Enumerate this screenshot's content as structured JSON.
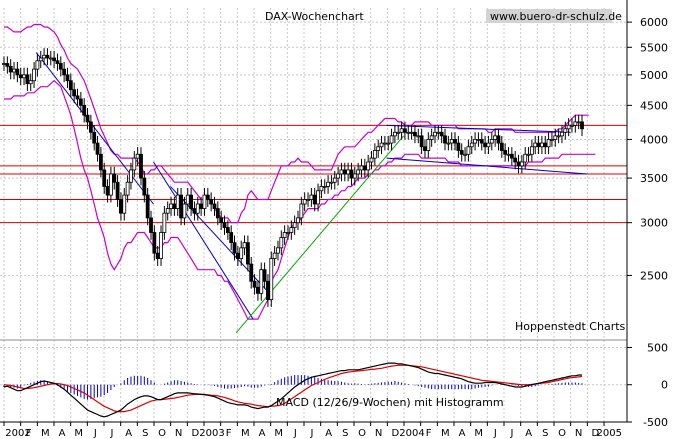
{
  "title": "DAX-Wochenchart",
  "source_badge": "www.buero-dr-schulz.de",
  "credit": "Hoppenstedt Charts",
  "macd_label": "MACD (12/26/9-Wochen) mit Histogramm",
  "colors": {
    "background": "#ffffff",
    "candle": "#000000",
    "bollinger": "#cc00cc",
    "support_lines": "#dd0000",
    "downtrend_lines": "#0000cc",
    "uptrend_line": "#00aa00",
    "macd_line": "#000000",
    "signal_line": "#dd0000",
    "histogram": "#0000cc",
    "badge_bg": "#d3d3d3"
  },
  "chart_data": [
    {
      "type": "candlestick",
      "title": "DAX-Wochenchart",
      "y_scale": "log",
      "ylim": [
        2000,
        6300
      ],
      "yticks": [
        2500,
        3000,
        3500,
        4000,
        4500,
        5000,
        5500,
        6000
      ],
      "grid": true,
      "x_start": "2002-01",
      "x_end": "2005-01",
      "x_tick_labels": [
        "2002",
        "F",
        "M",
        "A",
        "M",
        "J",
        "J",
        "A",
        "S",
        "O",
        "N",
        "D",
        "2003",
        "F",
        "M",
        "A",
        "M",
        "J",
        "J",
        "A",
        "S",
        "O",
        "N",
        "D",
        "2004",
        "F",
        "M",
        "A",
        "M",
        "J",
        "J",
        "A",
        "S",
        "O",
        "N",
        "D",
        "2005"
      ],
      "close": [
        5200,
        5150,
        5050,
        5100,
        5000,
        4950,
        5000,
        4850,
        4900,
        5100,
        5250,
        5300,
        5350,
        5300,
        5300,
        5250,
        5200,
        5100,
        5000,
        4900,
        4750,
        4650,
        4600,
        4500,
        4350,
        4250,
        4100,
        3950,
        3800,
        3600,
        3400,
        3300,
        3550,
        3450,
        3250,
        3100,
        3300,
        3450,
        3600,
        3750,
        3800,
        3500,
        3300,
        3050,
        2900,
        2700,
        2650,
        2900,
        3100,
        3150,
        3200,
        3150,
        3300,
        3050,
        3200,
        3300,
        3150,
        3100,
        3200,
        3150,
        3300,
        3250,
        3200,
        3150,
        3050,
        3000,
        2950,
        2900,
        2800,
        2700,
        2650,
        2750,
        2800,
        2600,
        2450,
        2400,
        2350,
        2550,
        2450,
        2300,
        2650,
        2700,
        2750,
        2850,
        2900,
        2900,
        2950,
        3000,
        3050,
        3200,
        3250,
        3250,
        3300,
        3200,
        3350,
        3400,
        3400,
        3450,
        3450,
        3500,
        3550,
        3600,
        3550,
        3600,
        3500,
        3550,
        3600,
        3650,
        3600,
        3700,
        3750,
        3850,
        3900,
        3950,
        3950,
        3950,
        4050,
        4100,
        4100,
        4150,
        4100,
        4100,
        4100,
        4050,
        4050,
        3900,
        3850,
        4000,
        4050,
        4100,
        4100,
        4050,
        3950,
        3950,
        4000,
        3950,
        3850,
        3800,
        3800,
        3900,
        3950,
        4000,
        4000,
        3950,
        3900,
        3950,
        4000,
        4050,
        3950,
        3850,
        3800,
        3800,
        3750,
        3700,
        3650,
        3700,
        3800,
        3800,
        3900,
        3950,
        3900,
        3950,
        3900,
        4000,
        4000,
        4050,
        4050,
        4100,
        4150,
        4200,
        4200,
        4250,
        4250,
        4150
      ],
      "bollinger_upper": [
        5900,
        5900,
        5850,
        5800,
        5800,
        5800,
        5850,
        5900,
        5900,
        5950,
        5950,
        5950,
        5900,
        5900,
        5850,
        5800,
        5700,
        5550,
        5450,
        5300,
        5200,
        5150,
        5100,
        5000,
        4900,
        4750,
        4600,
        4450,
        4300,
        4150,
        4050,
        3950,
        3850,
        3800,
        3800,
        3750,
        3750,
        3750,
        3750,
        3750,
        3700,
        3650,
        3550,
        3550,
        3600,
        3600,
        3650,
        3650,
        3600,
        3550,
        3500,
        3450,
        3450,
        3450,
        3450,
        3450,
        3400,
        3350,
        3300,
        3250,
        3250,
        3250,
        3250,
        3150,
        3100,
        3050,
        3050,
        3050,
        3000,
        3000,
        3000,
        3100,
        3150,
        3300,
        3350,
        3300,
        3250,
        3250,
        3250,
        3250,
        3350,
        3450,
        3550,
        3650,
        3650,
        3650,
        3700,
        3700,
        3750,
        3700,
        3700,
        3700,
        3650,
        3600,
        3600,
        3600,
        3600,
        3600,
        3600,
        3700,
        3800,
        3850,
        3900,
        3900,
        3900,
        3900,
        3950,
        4000,
        4050,
        4100,
        4100,
        4150,
        4200,
        4250,
        4300,
        4300,
        4300,
        4300,
        4250,
        4250,
        4200,
        4200,
        4200,
        4250,
        4250,
        4250,
        4250,
        4250,
        4200,
        4200,
        4200,
        4200,
        4200,
        4200,
        4200,
        4200,
        4150,
        4150,
        4150,
        4150,
        4150,
        4150,
        4150,
        4150,
        4150,
        4100,
        4100,
        4150,
        4150,
        4150,
        4150,
        4150,
        4150,
        4100,
        4100,
        4100,
        4100,
        4100,
        4100,
        4100,
        4100,
        4100,
        4100,
        4100,
        4100,
        4100,
        4150,
        4150,
        4200,
        4250,
        4300,
        4350,
        4350,
        4350,
        4350,
        4350
      ],
      "bollinger_lower": [
        4600,
        4600,
        4600,
        4650,
        4650,
        4650,
        4650,
        4700,
        4700,
        4700,
        4750,
        4800,
        4800,
        4800,
        4850,
        4900,
        4850,
        4800,
        4650,
        4500,
        4350,
        4150,
        3950,
        3750,
        3600,
        3500,
        3350,
        3200,
        3050,
        2950,
        2850,
        2700,
        2600,
        2550,
        2600,
        2650,
        2750,
        2800,
        2800,
        2850,
        2900,
        2900,
        2900,
        2850,
        2800,
        2750,
        2750,
        2750,
        2800,
        2800,
        2850,
        2850,
        2850,
        2800,
        2750,
        2700,
        2650,
        2600,
        2550,
        2550,
        2550,
        2550,
        2550,
        2550,
        2500,
        2500,
        2450,
        2450,
        2400,
        2350,
        2300,
        2250,
        2200,
        2150,
        2150,
        2150,
        2150,
        2200,
        2250,
        2300,
        2450,
        2500,
        2550,
        2650,
        2750,
        2850,
        2950,
        3000,
        3000,
        3050,
        3100,
        3150,
        3150,
        3150,
        3150,
        3200,
        3200,
        3250,
        3250,
        3300,
        3300,
        3350,
        3350,
        3400,
        3400,
        3450,
        3500,
        3500,
        3500,
        3550,
        3550,
        3600,
        3600,
        3650,
        3650,
        3700,
        3700,
        3750,
        3750,
        3750,
        3800,
        3800,
        3800,
        3800,
        3800,
        3750,
        3750,
        3750,
        3750,
        3750,
        3750,
        3750,
        3750,
        3700,
        3700,
        3700,
        3700,
        3650,
        3650,
        3650,
        3650,
        3650,
        3650,
        3650,
        3650,
        3650,
        3650,
        3650,
        3650,
        3650,
        3650,
        3650,
        3650,
        3650,
        3650,
        3650,
        3650,
        3700,
        3700,
        3700,
        3700,
        3700,
        3750,
        3750,
        3750,
        3750,
        3750,
        3800,
        3800,
        3800,
        3800,
        3800,
        3800,
        3800,
        3800,
        3800,
        3800,
        3800
      ],
      "horizontal_lines": [
        4200,
        3650,
        3550,
        3250,
        3000
      ],
      "trend_lines": [
        {
          "kind": "downtrend",
          "from": [
            "2002-03",
            5400
          ],
          "to": [
            "2002-10",
            3200
          ]
        },
        {
          "kind": "downtrend",
          "from": [
            "2002-10",
            3700
          ],
          "to": [
            "2003-04",
            2150
          ]
        },
        {
          "kind": "downtrend",
          "from": [
            "2002-11",
            3400
          ],
          "to": [
            "2003-05",
            2350
          ]
        },
        {
          "kind": "downtrend",
          "from": [
            "2003-12",
            4200
          ],
          "to": [
            "2004-11",
            4100
          ]
        },
        {
          "kind": "downtrend",
          "from": [
            "2003-12",
            3750
          ],
          "to": [
            "2004-12",
            3550
          ]
        },
        {
          "kind": "uptrend",
          "from": [
            "2003-03",
            2050
          ],
          "to": [
            "2004-01",
            4050
          ]
        }
      ]
    },
    {
      "type": "line",
      "title": "MACD (12/26/9-Wochen) mit Histogramm",
      "ylim": [
        -500,
        600
      ],
      "yticks": [
        -500,
        0,
        500
      ],
      "series": [
        {
          "values": [
            -30,
            -20,
            -40,
            -60,
            -80,
            -80,
            -60,
            -40,
            -20,
            0,
            20,
            40,
            50,
            40,
            30,
            20,
            0,
            -30,
            -60,
            -100,
            -140,
            -180,
            -220,
            -260,
            -300,
            -340,
            -360,
            -380,
            -400,
            -420,
            -430,
            -420,
            -400,
            -380,
            -360,
            -340,
            -300,
            -260,
            -230,
            -200,
            -180,
            -160,
            -150,
            -150,
            -160,
            -180,
            -200,
            -200,
            -180,
            -160,
            -140,
            -120,
            -110,
            -110,
            -110,
            -110,
            -115,
            -120,
            -125,
            -130,
            -135,
            -140,
            -150,
            -160,
            -180,
            -200,
            -220,
            -240,
            -250,
            -260,
            -270,
            -270,
            -270,
            -280,
            -300,
            -310,
            -320,
            -310,
            -300,
            -300,
            -280,
            -250,
            -220,
            -190,
            -150,
            -110,
            -70,
            -30,
            0,
            30,
            60,
            80,
            100,
            110,
            120,
            130,
            140,
            150,
            160,
            170,
            180,
            190,
            190,
            200,
            200,
            200,
            200,
            210,
            220,
            230,
            240,
            250,
            260,
            270,
            280,
            290,
            290,
            290,
            280,
            280,
            270,
            260,
            250,
            240,
            230,
            210,
            190,
            170,
            160,
            150,
            150,
            140,
            130,
            120,
            110,
            100,
            90,
            80,
            60,
            40,
            30,
            20,
            20,
            20,
            30,
            30,
            30,
            30,
            20,
            10,
            0,
            -10,
            -20,
            -30,
            -30,
            -30,
            -20,
            -10,
            0,
            10,
            20,
            30,
            40,
            50,
            60,
            70,
            80,
            90,
            100,
            110,
            120,
            120,
            130,
            130
          ]
        },
        {
          "values": [
            0,
            -5,
            -10,
            -20,
            -30,
            -40,
            -50,
            -50,
            -45,
            -40,
            -30,
            -20,
            -10,
            0,
            10,
            15,
            15,
            10,
            0,
            -10,
            -30,
            -50,
            -70,
            -90,
            -110,
            -140,
            -170,
            -200,
            -230,
            -260,
            -290,
            -310,
            -330,
            -350,
            -360,
            -360,
            -360,
            -350,
            -340,
            -320,
            -300,
            -280,
            -260,
            -240,
            -220,
            -210,
            -200,
            -200,
            -195,
            -190,
            -185,
            -180,
            -170,
            -160,
            -150,
            -140,
            -135,
            -130,
            -130,
            -130,
            -130,
            -135,
            -140,
            -145,
            -150,
            -160,
            -170,
            -185,
            -200,
            -215,
            -230,
            -240,
            -250,
            -255,
            -260,
            -270,
            -280,
            -285,
            -290,
            -295,
            -290,
            -285,
            -280,
            -270,
            -250,
            -220,
            -190,
            -160,
            -130,
            -100,
            -70,
            -40,
            -10,
            10,
            30,
            50,
            70,
            90,
            105,
            120,
            135,
            150,
            160,
            170,
            175,
            180,
            185,
            190,
            195,
            200,
            205,
            210,
            215,
            220,
            230,
            240,
            250,
            255,
            260,
            260,
            260,
            260,
            255,
            250,
            245,
            240,
            230,
            220,
            210,
            200,
            190,
            180,
            170,
            160,
            150,
            140,
            130,
            120,
            110,
            100,
            90,
            80,
            70,
            60,
            55,
            50,
            45,
            40,
            35,
            30,
            25,
            20,
            15,
            10,
            5,
            0,
            0,
            0,
            5,
            10,
            15,
            20,
            25,
            30,
            40,
            50,
            60,
            70,
            80,
            90,
            95,
            100,
            105,
            110
          ]
        }
      ],
      "histogram": [
        -30,
        -15,
        -30,
        -40,
        -50,
        -40,
        -10,
        10,
        25,
        40,
        50,
        60,
        60,
        40,
        20,
        5,
        -15,
        -40,
        -60,
        -90,
        -110,
        -130,
        -150,
        -170,
        -190,
        -200,
        -190,
        -180,
        -170,
        -160,
        -140,
        -110,
        -70,
        -30,
        0,
        20,
        60,
        90,
        110,
        120,
        120,
        120,
        110,
        90,
        60,
        30,
        0,
        0,
        15,
        30,
        45,
        60,
        60,
        50,
        40,
        30,
        20,
        10,
        5,
        0,
        -5,
        -5,
        -10,
        -15,
        -30,
        -40,
        -50,
        -55,
        -50,
        -45,
        -40,
        -30,
        -20,
        -25,
        -40,
        -40,
        -40,
        -25,
        -10,
        -5,
        10,
        35,
        60,
        80,
        100,
        110,
        120,
        130,
        130,
        130,
        130,
        120,
        110,
        100,
        90,
        80,
        70,
        60,
        55,
        50,
        45,
        40,
        30,
        20,
        15,
        20,
        15,
        10,
        5,
        10,
        15,
        20,
        25,
        30,
        35,
        40,
        40,
        50,
        40,
        30,
        20,
        10,
        0,
        -10,
        -20,
        -30,
        -40,
        -50,
        -60,
        -60,
        -60,
        -60,
        -60,
        -60,
        -60,
        -60,
        -60,
        -60,
        -60,
        -60,
        -60,
        -50,
        -40,
        -35,
        -30,
        -25,
        -10,
        -5,
        0,
        5,
        5,
        0,
        -5,
        -10,
        -15,
        -20,
        -30,
        -30,
        -30,
        -20,
        -10,
        -5,
        0,
        5,
        10,
        15,
        20,
        25,
        30,
        30,
        30,
        30,
        25,
        20
      ]
    }
  ],
  "x_labels": [
    "2002",
    "F",
    "M",
    "A",
    "M",
    "J",
    "J",
    "A",
    "S",
    "O",
    "N",
    "D",
    "2003",
    "F",
    "M",
    "A",
    "M",
    "J",
    "J",
    "A",
    "S",
    "O",
    "N",
    "D",
    "2004",
    "F",
    "M",
    "A",
    "M",
    "J",
    "J",
    "A",
    "S",
    "O",
    "N",
    "D",
    "2005"
  ],
  "y_labels_price": [
    "6000",
    "5500",
    "5000",
    "4500",
    "4000",
    "3500",
    "3000",
    "2500"
  ],
  "y_labels_macd": [
    "500",
    "0",
    "-500"
  ]
}
